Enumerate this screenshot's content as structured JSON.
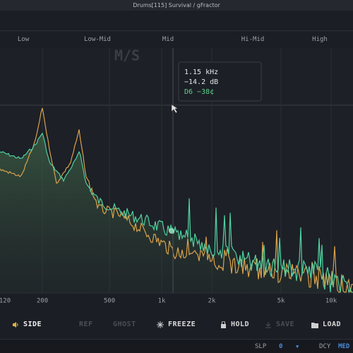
{
  "header": {
    "title": "Drums[115] Survival / gFractor"
  },
  "bands": [
    "Low",
    "Low-Mid",
    "Mid",
    "Hi-Mid",
    "High"
  ],
  "watermark": "M/S",
  "tooltip": {
    "frequency": "1.15 kHz",
    "level": "−14.2 dB",
    "note": "D6 −38¢"
  },
  "frequency_axis": [
    "120",
    "200",
    "500",
    "1k",
    "2k",
    "5k",
    "10k"
  ],
  "toolbar": {
    "buttons": [
      "SIDE",
      "REF",
      "GHOST",
      "FREEZE",
      "HOLD",
      "SAVE",
      "LOAD"
    ]
  },
  "status": {
    "slope_label": "SLP",
    "slope_value": "0",
    "decay_label": "DCY",
    "decay_value": "MED"
  }
}
